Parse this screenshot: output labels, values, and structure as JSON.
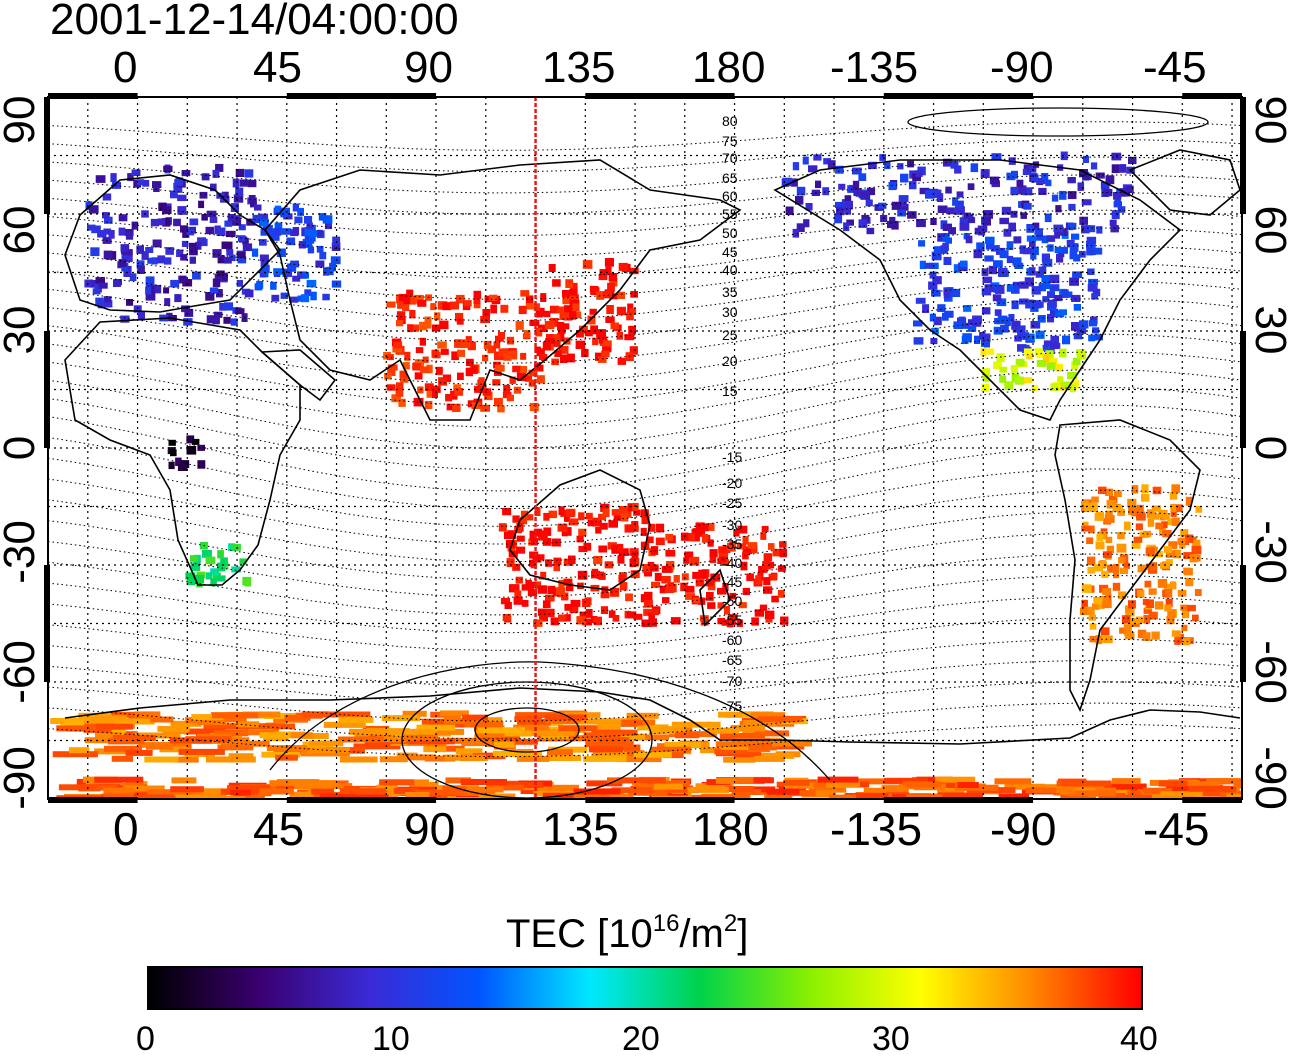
{
  "timestamp": "2001-12-14/04:00:00",
  "map": {
    "lon_ticks": [
      "0",
      "45",
      "90",
      "135",
      "180",
      "-135",
      "-90",
      "-45"
    ],
    "lat_ticks": [
      "90",
      "60",
      "30",
      "0",
      "-30",
      "-60",
      "-90"
    ],
    "meridian_marker_lon": 120,
    "meridian_marker_color": "#e41a1c",
    "contour_labels": [
      "80",
      "75",
      "70",
      "65",
      "60",
      "55",
      "50",
      "45",
      "40",
      "35",
      "30",
      "25",
      "20",
      "15",
      "-15",
      "-20",
      "-25",
      "-30",
      "-35",
      "-40",
      "-45",
      "-50",
      "-55",
      "-60",
      "-65",
      "-70",
      "-75"
    ]
  },
  "colorbar": {
    "title_prefix": "TEC  [10",
    "title_sup1": "16",
    "title_mid": "/m",
    "title_sup2": "2",
    "title_suffix": "]",
    "ticks": [
      "0",
      "10",
      "20",
      "30",
      "40"
    ],
    "min": 0,
    "max": 40,
    "colormap": [
      "#000000",
      "#3a0070",
      "#3a2ad6",
      "#0055ff",
      "#00e8ff",
      "#00d24a",
      "#8af000",
      "#ffff00",
      "#ff8800",
      "#ff0000"
    ]
  },
  "tec_regions": [
    {
      "name": "europe",
      "lon": [
        -15,
        35
      ],
      "lat": [
        32,
        72
      ],
      "tec": 8
    },
    {
      "name": "europe-east",
      "lon": [
        35,
        60
      ],
      "lat": [
        38,
        62
      ],
      "tec": 11
    },
    {
      "name": "north-america",
      "lon": [
        -125,
        -70
      ],
      "lat": [
        25,
        55
      ],
      "tec": 11
    },
    {
      "name": "canada",
      "lon": [
        -165,
        -60
      ],
      "lat": [
        55,
        75
      ],
      "tec": 9
    },
    {
      "name": "central-america",
      "lon": [
        -105,
        -75
      ],
      "lat": [
        15,
        25
      ],
      "tec": 30
    },
    {
      "name": "east-asia",
      "lon": [
        125,
        150
      ],
      "lat": [
        22,
        48
      ],
      "tec": 40
    },
    {
      "name": "asia-mid",
      "lon": [
        75,
        125
      ],
      "lat": [
        10,
        40
      ],
      "tec": 39
    },
    {
      "name": "australia",
      "lon": [
        110,
        155
      ],
      "lat": [
        -45,
        -15
      ],
      "tec": 40
    },
    {
      "name": "pacific-south",
      "lon": [
        155,
        195
      ],
      "lat": [
        -45,
        -20
      ],
      "tec": 40
    },
    {
      "name": "south-america",
      "lon": [
        -75,
        -40
      ],
      "lat": [
        -50,
        -10
      ],
      "tec": 36
    },
    {
      "name": "south-africa",
      "lon": [
        15,
        35
      ],
      "lat": [
        -35,
        -25
      ],
      "tec": 23
    },
    {
      "name": "central-africa",
      "lon": [
        10,
        20
      ],
      "lat": [
        -5,
        3
      ],
      "tec": 2
    },
    {
      "name": "antarctic",
      "lon": [
        -20,
        200
      ],
      "lat": [
        -80,
        -68
      ],
      "tec": 36
    },
    {
      "name": "south-pole-band",
      "lon": [
        -20,
        340
      ],
      "lat": [
        -90,
        -85
      ],
      "tec": 37
    }
  ]
}
